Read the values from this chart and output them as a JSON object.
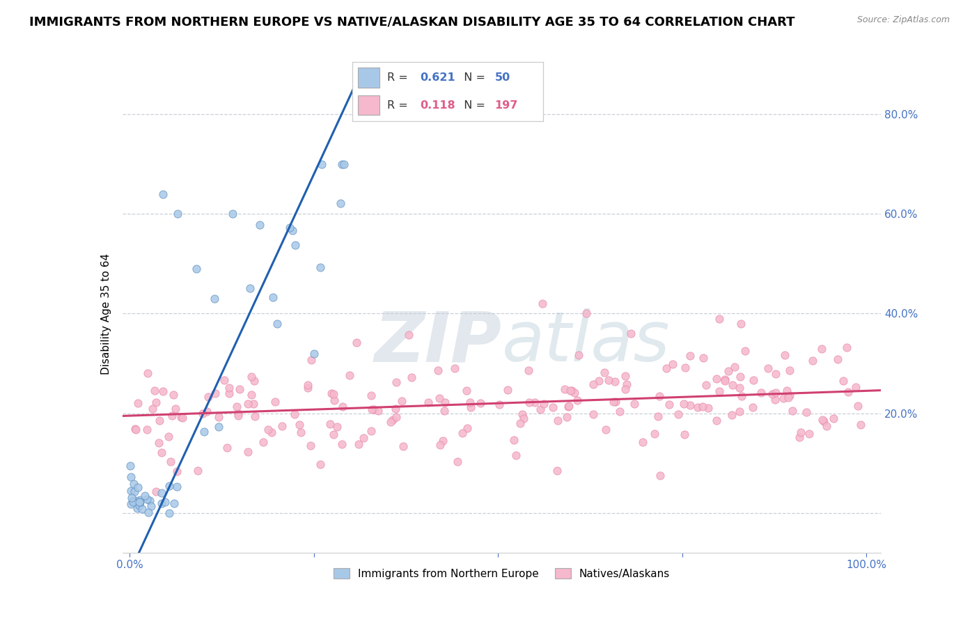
{
  "title": "IMMIGRANTS FROM NORTHERN EUROPE VS NATIVE/ALASKAN DISABILITY AGE 35 TO 64 CORRELATION CHART",
  "source": "Source: ZipAtlas.com",
  "ylabel": "Disability Age 35 to 64",
  "ytick_values": [
    0.0,
    0.2,
    0.4,
    0.6,
    0.8
  ],
  "ytick_labels_right": [
    "",
    "20.0%",
    "40.0%",
    "60.0%",
    "80.0%"
  ],
  "xlim": [
    -0.01,
    1.02
  ],
  "ylim": [
    -0.08,
    0.88
  ],
  "blue_R": 0.621,
  "blue_N": 50,
  "pink_R": 0.118,
  "pink_N": 197,
  "blue_color": "#a8c8e8",
  "pink_color": "#f5b8cc",
  "blue_edge_color": "#6090c0",
  "pink_edge_color": "#e888a8",
  "blue_line_color": "#2060b0",
  "pink_line_color": "#d04070",
  "dashed_line_color": "#b0b8c8",
  "watermark_zip": "ZIP",
  "watermark_atlas": "atlas",
  "title_fontsize": 13,
  "axis_label_fontsize": 11,
  "tick_fontsize": 11,
  "legend_fontsize": 12,
  "background_color": "#ffffff",
  "grid_color": "#c8d0d8",
  "blue_slope": 3.2,
  "blue_intercept": -0.12,
  "pink_slope": 0.05,
  "pink_intercept": 0.195
}
